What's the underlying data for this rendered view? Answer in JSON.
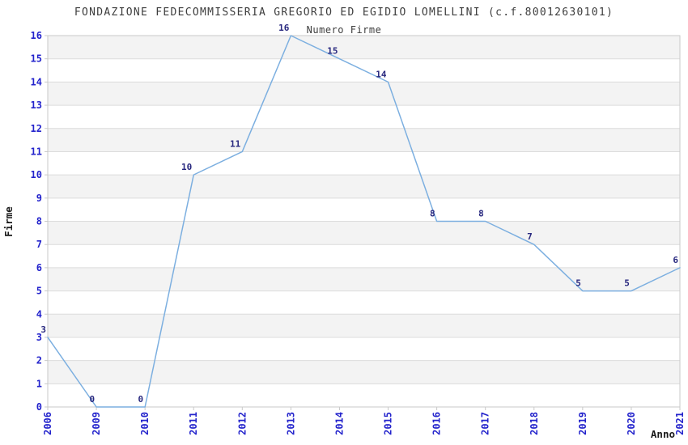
{
  "chart_data": {
    "type": "line",
    "title": "FONDAZIONE FEDECOMMISSERIA GREGORIO ED EGIDIO LOMELLINI (c.f.80012630101)",
    "subtitle": "Numero Firme",
    "xlabel": "Anno",
    "ylabel": "Firme",
    "categories": [
      "2006",
      "2009",
      "2010",
      "2011",
      "2012",
      "2013",
      "2014",
      "2015",
      "2016",
      "2017",
      "2018",
      "2019",
      "2020",
      "2021"
    ],
    "values": [
      3,
      0,
      0,
      10,
      11,
      16,
      15,
      14,
      8,
      8,
      7,
      5,
      5,
      6
    ],
    "ylim": [
      0,
      16
    ],
    "yticks": [
      0,
      1,
      2,
      3,
      4,
      5,
      6,
      7,
      8,
      9,
      10,
      11,
      12,
      13,
      14,
      15,
      16
    ],
    "grid": "horizontal-bands",
    "legend_position": "none",
    "point_labels_shown": true,
    "colors": {
      "line": "#7cafe0",
      "point_label": "#28287f",
      "tick_label": "#2424cc",
      "title_text": "#3d3d3d",
      "axis_label_text": "#1a1a1a",
      "band_fill": "#f3f3f3",
      "gridline": "#dcdcdc",
      "plot_border": "#c9c9c9",
      "background": "#ffffff"
    }
  }
}
